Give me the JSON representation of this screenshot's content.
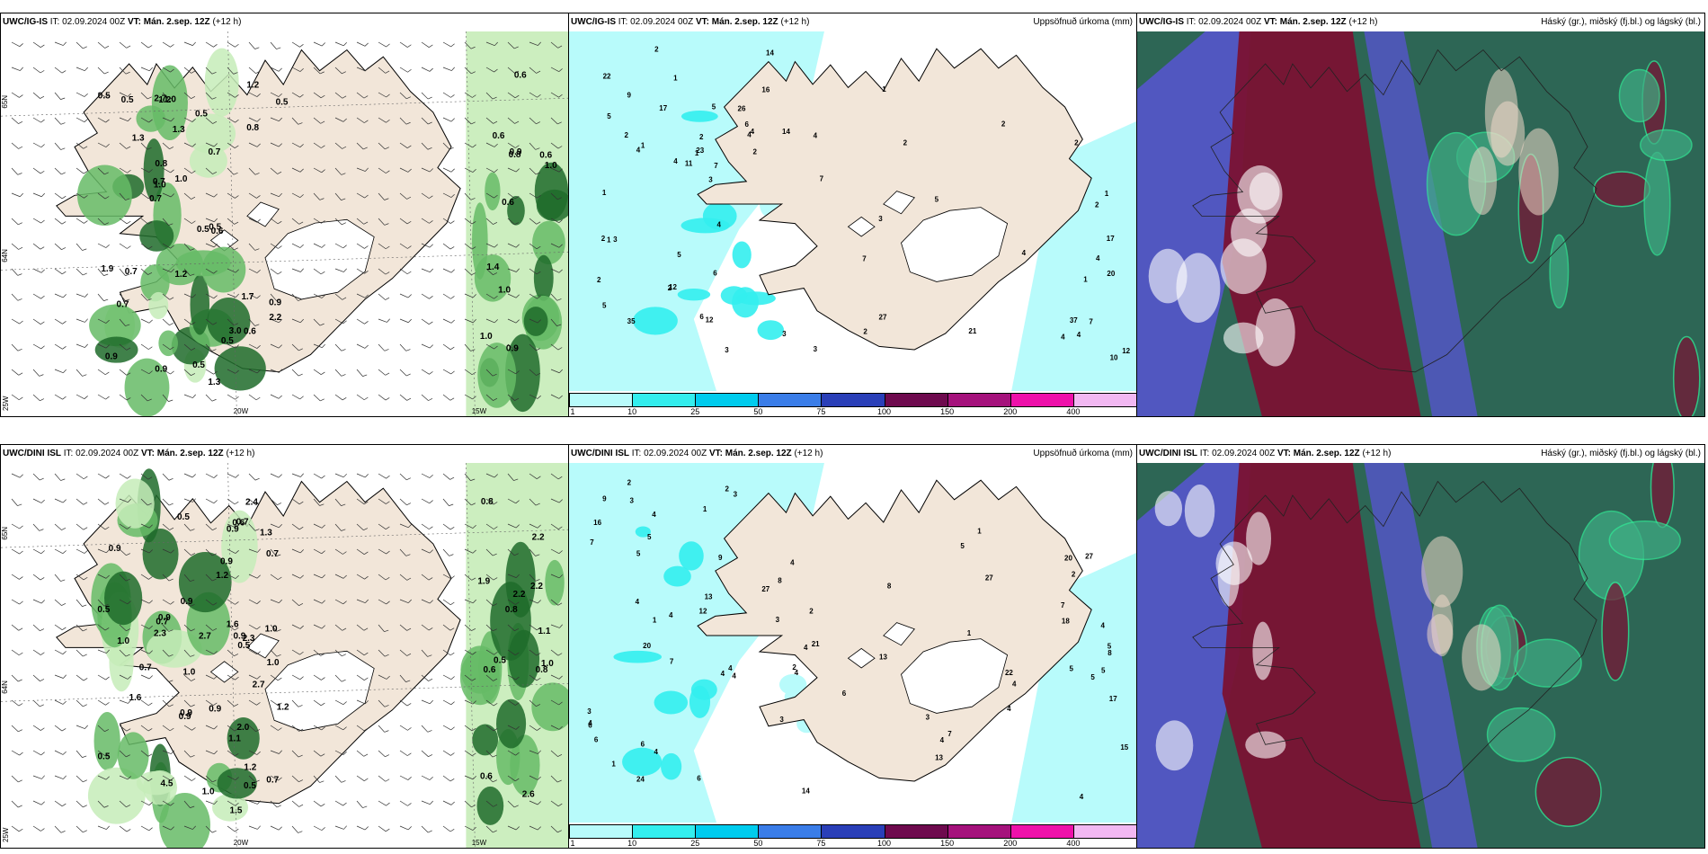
{
  "rows": [
    {
      "model": "UWC/IG-IS",
      "it_label": "IT:",
      "it_value": "02.09.2024 00Z",
      "vt_label": "VT:",
      "vt_value": "Mán. 2.sep. 12Z",
      "lead": "(+12 h)",
      "wind_values": [
        "1.2",
        "0.7",
        "0.5",
        "0.6",
        "0.5",
        "1.0",
        "0.9",
        "0.8",
        "0.7",
        "0.5",
        "1.0",
        "0.6",
        "1.0",
        "0.9",
        "0.6",
        "1.0",
        "1.2",
        "0.7",
        "0.5",
        "1.0",
        "2.7",
        "1.3",
        "1.9",
        "0.6",
        "2.2",
        "0.7",
        "1.2",
        "0.9",
        "0.6",
        "0.5",
        "0.9",
        "0.6",
        "0.5",
        "0.8",
        "0.7",
        "1.0",
        "0.8",
        "0.5",
        "1.3",
        "1.4",
        "3.0",
        "1.7",
        "0.5",
        "0.9",
        "1.3"
      ],
      "precip_values": [
        "3",
        "5",
        "5",
        "3",
        "4",
        "3",
        "6",
        "2",
        "7",
        "7",
        "4",
        "12",
        "17",
        "27",
        "17",
        "4",
        "2",
        "12",
        "4",
        "12",
        "5",
        "23",
        "22",
        "21",
        "37",
        "9",
        "14",
        "11",
        "5",
        "20",
        "7",
        "6",
        "4",
        "2",
        "10",
        "3",
        "14",
        "35",
        "2",
        "2",
        "1",
        "4",
        "3",
        "7",
        "4",
        "2",
        "26",
        "16",
        "2",
        "1",
        "2",
        "1",
        "4",
        "1",
        "2",
        "1",
        "2",
        "2",
        "4",
        "4",
        "6",
        "5",
        "1",
        "3",
        "1",
        "1",
        "2"
      ],
      "precip_title": "Uppsöfnuð úrkoma (mm)",
      "cloud_title": "Háský (gr.), miðský (fj.bl.) og lágský (bl.)"
    },
    {
      "model": "UWC/DINI ISL",
      "it_label": "IT:",
      "it_value": "02.09.2024 00Z",
      "vt_label": "VT:",
      "vt_value": "Mán. 2.sep. 12Z",
      "lead": "(+12 h)",
      "wind_values": [
        "0.7",
        "0.5",
        "0.5",
        "0.8",
        "1.2",
        "0.9",
        "0.7",
        "0.8",
        "0.9",
        "0.5",
        "0.9",
        "1.0",
        "1.3",
        "1.6",
        "0.9",
        "2.2",
        "1.1",
        "1.0",
        "1.2",
        "0.6",
        "4.5",
        "2.7",
        "0.9",
        "2.2",
        "1.6",
        "2.3",
        "2.3",
        "1.1",
        "1.0",
        "0.9",
        "1.5",
        "2.6",
        "2.0",
        "2.7",
        "2.4",
        "0.8",
        "0.9",
        "0.6",
        "1.0",
        "2.2",
        "0.5",
        "1.2",
        "0.7",
        "0.5",
        "0.7",
        "0.9",
        "1.0",
        "0.6",
        "0.7",
        "0.5",
        "0.9",
        "1.9",
        "1.0"
      ],
      "precip_values": [
        "4",
        "4",
        "4",
        "4",
        "5",
        "4",
        "3",
        "4",
        "4",
        "4",
        "5",
        "6",
        "4",
        "8",
        "20",
        "13",
        "6",
        "3",
        "13",
        "18",
        "21",
        "20",
        "24",
        "22",
        "17",
        "16",
        "14",
        "12",
        "27",
        "27",
        "27",
        "4",
        "3",
        "4",
        "5",
        "2",
        "4",
        "1",
        "1",
        "2",
        "2",
        "1",
        "4",
        "13",
        "15",
        "7",
        "1",
        "6",
        "3",
        "5",
        "3",
        "3",
        "2",
        "1",
        "5",
        "4",
        "2",
        "8",
        "7",
        "4",
        "4",
        "7",
        "9",
        "6",
        "7",
        "5",
        "6",
        "9",
        "5",
        "8"
      ],
      "precip_title": "Uppsöfnuð úrkoma (mm)",
      "cloud_title": "Háský (gr.), miðský (fj.bl.) og lágský (bl.)"
    }
  ],
  "lat_labels": [
    "65N",
    "64N"
  ],
  "lon_labels": [
    "25W",
    "20W",
    "15W"
  ],
  "colorbar": {
    "ticks": [
      "1",
      "10",
      "25",
      "50",
      "75",
      "100",
      "150",
      "200",
      "400"
    ],
    "colors": [
      "#b8fbfb",
      "#33eeee",
      "#00ccee",
      "#3a7de8",
      "#2a3fb8",
      "#6e0a4e",
      "#a5127c",
      "#ee11aa",
      "#f2b8f2"
    ]
  },
  "colors": {
    "land": "#f2e6d9",
    "sea": "#ffffff",
    "glacier": "#ffffff",
    "precip_light": "#b8fbfb",
    "precip_mid": "#33eeee",
    "wind_light": "#c6ecb8",
    "wind_mid": "#66bb66",
    "wind_dark": "#1e6b2a",
    "cloud_high": "#2d6655",
    "cloud_mid": "#7a1233",
    "cloud_low": "#5555cc"
  }
}
